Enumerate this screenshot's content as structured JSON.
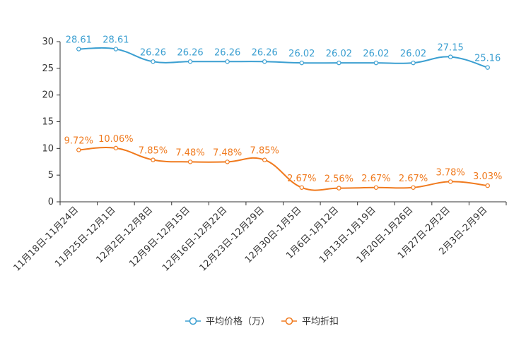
{
  "chart_data": {
    "type": "line",
    "categories": [
      "11月18日-11月24日",
      "11月25日-12月1日",
      "12月2日-12月8日",
      "12月9日-12月15日",
      "12月16日-12月22日",
      "12月23日-12月29日",
      "12月30日-1月5日",
      "1月6日-1月12日",
      "1月13日-1月19日",
      "1月20日-1月26日",
      "1月27日-2月2日",
      "2月3日-2月9日"
    ],
    "ylim": [
      0,
      30
    ],
    "yticks": [
      0,
      5,
      10,
      15,
      20,
      25,
      30
    ],
    "series": [
      {
        "name": "平均价格（万）",
        "color": "#3b9fd1",
        "values": [
          28.61,
          28.61,
          26.26,
          26.26,
          26.26,
          26.26,
          26.02,
          26.02,
          26.02,
          26.02,
          27.15,
          25.16
        ],
        "labels": [
          "28.61",
          "28.61",
          "26.26",
          "26.26",
          "26.26",
          "26.26",
          "26.02",
          "26.02",
          "26.02",
          "26.02",
          "27.15",
          "25.16"
        ]
      },
      {
        "name": "平均折扣",
        "color": "#f07a1e",
        "values": [
          9.72,
          10.06,
          7.85,
          7.48,
          7.48,
          7.85,
          2.67,
          2.56,
          2.67,
          2.67,
          3.78,
          3.03
        ],
        "labels": [
          "9.72%",
          "10.06%",
          "7.85%",
          "7.48%",
          "7.48%",
          "7.85%",
          "2.67%",
          "2.56%",
          "2.67%",
          "2.67%",
          "3.78%",
          "3.03%"
        ]
      }
    ],
    "legend_position": "bottom"
  }
}
